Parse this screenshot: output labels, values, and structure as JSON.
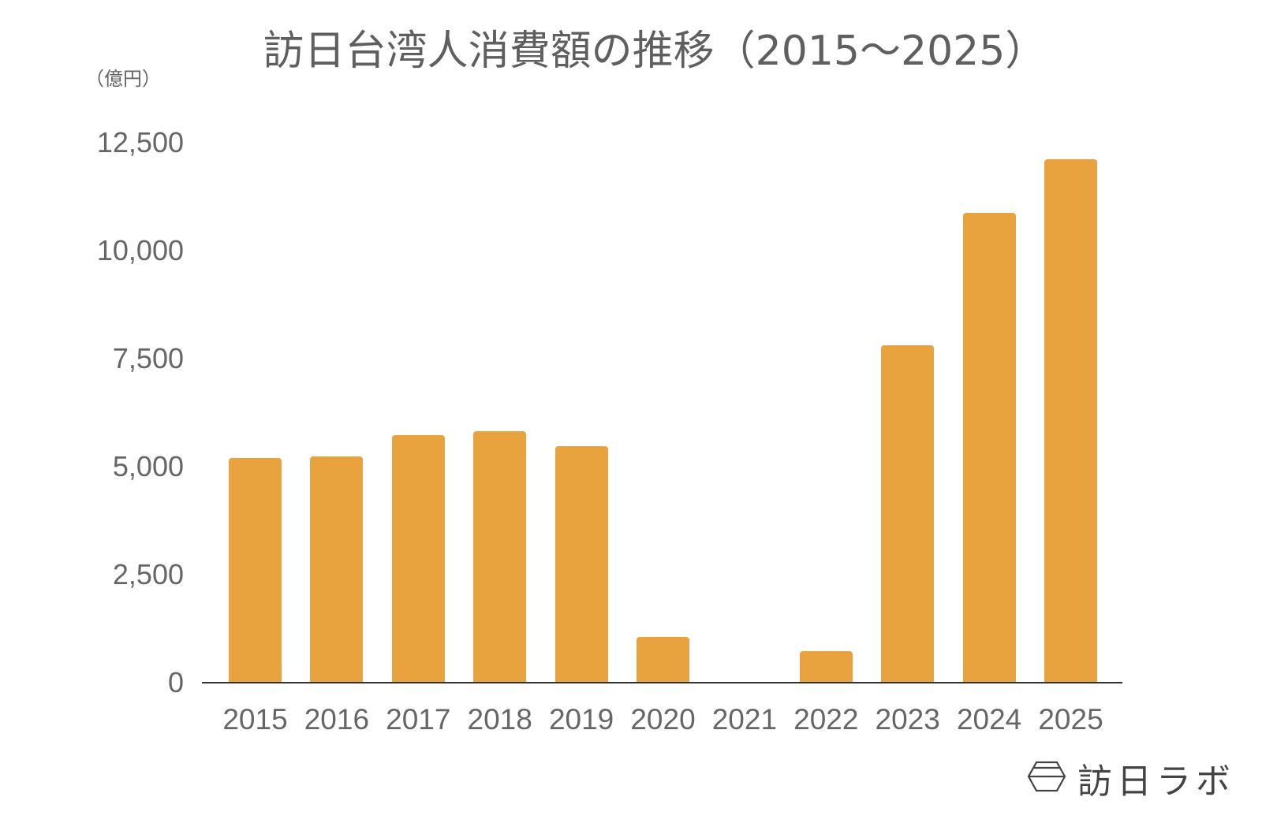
{
  "title": "訪日台湾人消費額の推移（2015〜2025）",
  "unit_label": "（億円）",
  "y_axis": {
    "ticks": [
      {
        "label": "12,500",
        "value": 12500
      },
      {
        "label": "10,000",
        "value": 10000
      },
      {
        "label": "7,500",
        "value": 7500
      },
      {
        "label": "5,000",
        "value": 5000
      },
      {
        "label": "2,500",
        "value": 2500
      },
      {
        "label": "0",
        "value": 0
      }
    ]
  },
  "colors": {
    "bar": "#E8A23E",
    "axis": "#333333",
    "text": "#666666"
  },
  "logo": {
    "text": "訪日ラボ",
    "icon": "hexagon-bowl-logo-icon"
  },
  "chart_data": {
    "type": "bar",
    "title": "訪日台湾人消費額の推移（2015〜2025）",
    "xlabel": "",
    "ylabel": "（億円）",
    "categories": [
      "2015",
      "2016",
      "2017",
      "2018",
      "2019",
      "2020",
      "2021",
      "2022",
      "2023",
      "2024",
      "2025"
    ],
    "values": [
      5200,
      5240,
      5730,
      5820,
      5470,
      1060,
      0,
      730,
      7810,
      10880,
      12120
    ],
    "ylim": [
      0,
      12500
    ],
    "yticks": [
      0,
      2500,
      5000,
      7500,
      10000,
      12500
    ],
    "grid": false,
    "legend": null,
    "bar_color": "#E8A23E"
  }
}
